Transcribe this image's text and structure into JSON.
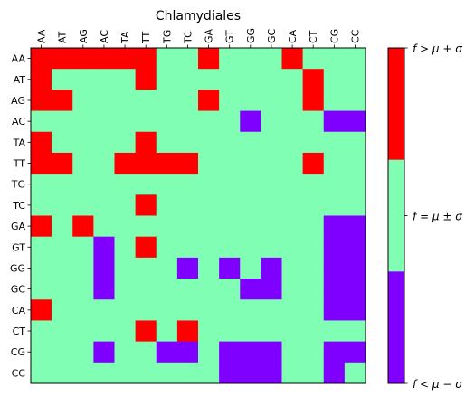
{
  "chart_data": {
    "type": "heatmap",
    "title": "Chlamydiales",
    "x_labels": [
      "AA",
      "AT",
      "AG",
      "AC",
      "TA",
      "TT",
      "TG",
      "TC",
      "GA",
      "GT",
      "GG",
      "GC",
      "CA",
      "CT",
      "CG",
      "CC"
    ],
    "y_labels": [
      "AA",
      "AT",
      "AG",
      "AC",
      "TA",
      "TT",
      "TG",
      "TC",
      "GA",
      "GT",
      "GG",
      "GC",
      "CA",
      "CT",
      "CG",
      "CC"
    ],
    "legend": "right colorbar",
    "colorbar": {
      "categories": [
        {
          "code": 1,
          "label": "f > μ + σ",
          "color": "#ff0000"
        },
        {
          "code": 0,
          "label": "f = μ ± σ",
          "color": "#80ffb4"
        },
        {
          "code": -1,
          "label": "f < μ − σ",
          "color": "#8000ff"
        }
      ]
    },
    "matrix": [
      [
        1,
        1,
        1,
        1,
        1,
        1,
        0,
        0,
        1,
        0,
        0,
        0,
        1,
        0,
        0,
        0
      ],
      [
        1,
        0,
        0,
        0,
        0,
        1,
        0,
        0,
        0,
        0,
        0,
        0,
        0,
        1,
        0,
        0
      ],
      [
        1,
        1,
        0,
        0,
        0,
        0,
        0,
        0,
        1,
        0,
        0,
        0,
        0,
        1,
        0,
        0
      ],
      [
        0,
        0,
        0,
        0,
        0,
        0,
        0,
        0,
        0,
        0,
        -1,
        0,
        0,
        0,
        -1,
        -1
      ],
      [
        1,
        0,
        0,
        0,
        0,
        1,
        0,
        0,
        0,
        0,
        0,
        0,
        0,
        0,
        0,
        0
      ],
      [
        1,
        1,
        0,
        0,
        1,
        1,
        1,
        1,
        0,
        0,
        0,
        0,
        0,
        1,
        0,
        0
      ],
      [
        0,
        0,
        0,
        0,
        0,
        0,
        0,
        0,
        0,
        0,
        0,
        0,
        0,
        0,
        0,
        0
      ],
      [
        0,
        0,
        0,
        0,
        0,
        1,
        0,
        0,
        0,
        0,
        0,
        0,
        0,
        0,
        0,
        0
      ],
      [
        1,
        0,
        1,
        0,
        0,
        0,
        0,
        0,
        0,
        0,
        0,
        0,
        0,
        0,
        -1,
        -1
      ],
      [
        0,
        0,
        0,
        -1,
        0,
        1,
        0,
        0,
        0,
        0,
        0,
        0,
        0,
        0,
        -1,
        -1
      ],
      [
        0,
        0,
        0,
        -1,
        0,
        0,
        0,
        -1,
        0,
        -1,
        0,
        -1,
        0,
        0,
        -1,
        -1
      ],
      [
        0,
        0,
        0,
        -1,
        0,
        0,
        0,
        0,
        0,
        0,
        -1,
        -1,
        0,
        0,
        -1,
        -1
      ],
      [
        1,
        0,
        0,
        0,
        0,
        0,
        0,
        0,
        0,
        0,
        0,
        0,
        0,
        0,
        -1,
        -1
      ],
      [
        0,
        0,
        0,
        0,
        0,
        1,
        0,
        1,
        0,
        0,
        0,
        0,
        0,
        0,
        0,
        0
      ],
      [
        0,
        0,
        0,
        -1,
        0,
        0,
        -1,
        -1,
        0,
        -1,
        -1,
        -1,
        0,
        0,
        -1,
        -1
      ],
      [
        0,
        0,
        0,
        0,
        0,
        0,
        0,
        0,
        0,
        -1,
        -1,
        -1,
        0,
        0,
        -1,
        0
      ]
    ]
  }
}
